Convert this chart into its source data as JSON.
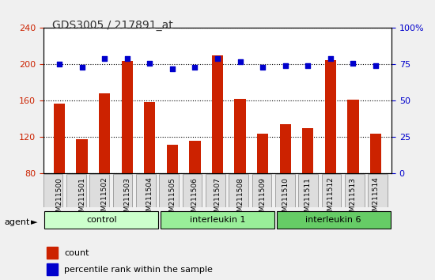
{
  "title": "GDS3005 / 217891_at",
  "samples": [
    "GSM211500",
    "GSM211501",
    "GSM211502",
    "GSM211503",
    "GSM211504",
    "GSM211505",
    "GSM211506",
    "GSM211507",
    "GSM211508",
    "GSM211509",
    "GSM211510",
    "GSM211511",
    "GSM211512",
    "GSM211513",
    "GSM211514"
  ],
  "counts": [
    157,
    118,
    168,
    204,
    159,
    112,
    116,
    210,
    162,
    124,
    134,
    130,
    205,
    161,
    124
  ],
  "percentile": [
    75,
    73,
    79,
    79,
    76,
    72,
    73,
    79,
    77,
    73,
    74,
    74,
    79,
    76,
    74
  ],
  "groups": [
    {
      "label": "control",
      "start": 0,
      "end": 5,
      "color": "#ccffcc"
    },
    {
      "label": "interleukin 1",
      "start": 5,
      "end": 10,
      "color": "#66ff66"
    },
    {
      "label": "interleukin 6",
      "start": 10,
      "end": 15,
      "color": "#33cc33"
    }
  ],
  "ylim_left": [
    80,
    240
  ],
  "yticks_left": [
    80,
    120,
    160,
    200,
    240
  ],
  "ylim_right": [
    0,
    100
  ],
  "yticks_right": [
    0,
    25,
    50,
    75,
    100
  ],
  "bar_color": "#cc2200",
  "dot_color": "#0000cc",
  "background_color": "#f0f0f0",
  "plot_bg": "#ffffff",
  "title_color": "#333333",
  "left_tick_color": "#cc2200",
  "right_tick_color": "#0000cc",
  "agent_label": "agent",
  "legend_count_label": "count",
  "legend_pct_label": "percentile rank within the sample"
}
